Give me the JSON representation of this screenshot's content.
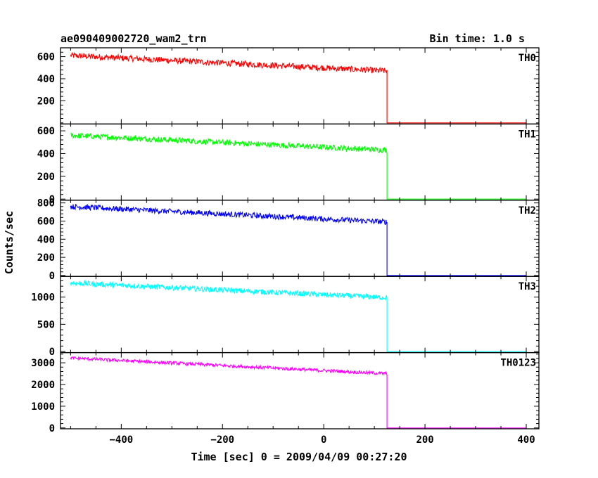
{
  "chart_data": {
    "type": "line",
    "title_left": "ae090409002720_wam2_trn",
    "title_right": "Bin time: 1.0 s",
    "xlabel": "Time [sec] 0 = 2009/04/09 00:27:20",
    "ylabel": "Counts/sec",
    "xlim": [
      -520,
      425
    ],
    "x_ticks": [
      -400,
      -200,
      0,
      200,
      400
    ],
    "x_start": -500,
    "x_drop": 125,
    "x_end": 400,
    "panels": [
      {
        "name": "TH0",
        "color": "#ff0000",
        "ylim": [
          -10,
          680
        ],
        "y_ticks": [
          200,
          400,
          600
        ],
        "start_level": 610,
        "end_level": 470,
        "noise": 50,
        "after_level": 0
      },
      {
        "name": "TH1",
        "color": "#00ff00",
        "ylim": [
          -10,
          660
        ],
        "y_ticks": [
          0,
          200,
          400,
          600
        ],
        "start_level": 560,
        "end_level": 430,
        "noise": 45,
        "after_level": 0
      },
      {
        "name": "TH2",
        "color": "#0000ff",
        "ylim": [
          -10,
          830
        ],
        "y_ticks": [
          0,
          200,
          400,
          600,
          800
        ],
        "start_level": 760,
        "end_level": 590,
        "noise": 55,
        "after_level": 0
      },
      {
        "name": "TH3",
        "color": "#00ffff",
        "ylim": [
          -20,
          1380
        ],
        "y_ticks": [
          0,
          500,
          1000
        ],
        "start_level": 1260,
        "end_level": 990,
        "noise": 90,
        "after_level": 0
      },
      {
        "name": "TH0123",
        "color": "#ff00ff",
        "ylim": [
          -40,
          3470
        ],
        "y_ticks": [
          0,
          1000,
          2000,
          3000
        ],
        "start_level": 3220,
        "end_level": 2500,
        "noise": 140,
        "after_level": 0
      }
    ]
  }
}
